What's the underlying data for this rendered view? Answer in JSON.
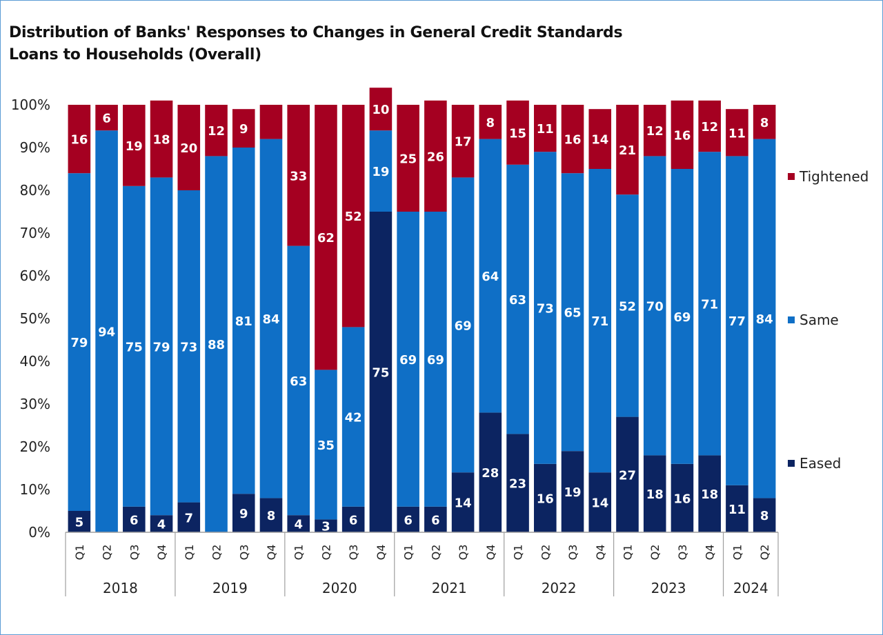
{
  "header": {
    "title": "Distribution of Banks' Responses to Changes in General Credit Standards",
    "subtitle": "Loans to Households (Overall)"
  },
  "chart_data": {
    "type": "bar",
    "stacked": true,
    "title": "Distribution of Banks' Responses to Changes in General Credit Standards",
    "subtitle": "Loans to Households (Overall)",
    "categories": [
      "Q1",
      "Q2",
      "Q3",
      "Q4",
      "Q1",
      "Q2",
      "Q3",
      "Q4",
      "Q1",
      "Q2",
      "Q3",
      "Q4",
      "Q1",
      "Q2",
      "Q3",
      "Q4",
      "Q1",
      "Q2",
      "Q3",
      "Q4",
      "Q1",
      "Q2",
      "Q3",
      "Q4",
      "Q1",
      "Q2"
    ],
    "year_groups": [
      {
        "label": "2018",
        "count": 4
      },
      {
        "label": "2019",
        "count": 4
      },
      {
        "label": "2020",
        "count": 4
      },
      {
        "label": "2021",
        "count": 4
      },
      {
        "label": "2022",
        "count": 4
      },
      {
        "label": "2023",
        "count": 4
      },
      {
        "label": "2024",
        "count": 2
      }
    ],
    "series": [
      {
        "name": "Eased",
        "color": "#0c2461",
        "values": [
          5,
          0,
          6,
          4,
          7,
          0,
          9,
          8,
          4,
          3,
          6,
          75,
          6,
          6,
          14,
          28,
          23,
          16,
          19,
          14,
          27,
          18,
          16,
          18,
          11,
          8
        ],
        "labels": [
          "5",
          "",
          "6",
          "4",
          "7",
          "",
          "9",
          "8",
          "4",
          "3",
          "6",
          "75",
          "6",
          "6",
          "14",
          "28",
          "23",
          "16",
          "19",
          "14",
          "27",
          "18",
          "16",
          "18",
          "11",
          "8"
        ]
      },
      {
        "name": "Same",
        "color": "#0f6fc6",
        "values": [
          79,
          94,
          75,
          79,
          73,
          88,
          81,
          84,
          63,
          35,
          42,
          19,
          69,
          69,
          69,
          64,
          63,
          73,
          65,
          71,
          52,
          70,
          69,
          71,
          77,
          84
        ],
        "labels": [
          "79",
          "94",
          "75",
          "79",
          "73",
          "88",
          "81",
          "84",
          "63",
          "35",
          "42",
          "19",
          "69",
          "69",
          "69",
          "64",
          "63",
          "73",
          "65",
          "71",
          "52",
          "70",
          "69",
          "71",
          "77",
          "84"
        ]
      },
      {
        "name": "Tightened",
        "color": "#a50021",
        "values": [
          16,
          6,
          19,
          18,
          20,
          12,
          9,
          8,
          33,
          62,
          52,
          10,
          25,
          26,
          17,
          8,
          15,
          11,
          16,
          14,
          21,
          12,
          16,
          12,
          11,
          8
        ],
        "labels": [
          "16",
          "6",
          "19",
          "18",
          "20",
          "12",
          "9",
          "",
          "33",
          "62",
          "52",
          "10",
          "25",
          "26",
          "17",
          "8",
          "15",
          "11",
          "16",
          "14",
          "21",
          "12",
          "16",
          "12",
          "11",
          "8"
        ]
      }
    ],
    "y_ticks": [
      "0%",
      "10%",
      "20%",
      "30%",
      "40%",
      "50%",
      "60%",
      "70%",
      "80%",
      "90%",
      "100%"
    ],
    "ylim": [
      0,
      100
    ],
    "grid": false,
    "legend": [
      "Tightened",
      "Same",
      "Eased"
    ],
    "legend_position": "right"
  }
}
